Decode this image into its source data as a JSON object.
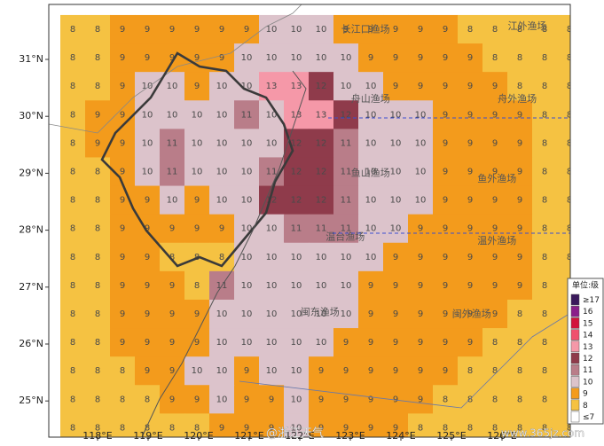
{
  "map": {
    "lat_ticks": [
      {
        "value": 31,
        "label": "31°N"
      },
      {
        "value": 30,
        "label": "30°N"
      },
      {
        "value": 29,
        "label": "29°N"
      },
      {
        "value": 28,
        "label": "28°N"
      },
      {
        "value": 27,
        "label": "27°N"
      },
      {
        "value": 26,
        "label": "26°N"
      },
      {
        "value": 25,
        "label": "25°N"
      }
    ],
    "lon_ticks": [
      {
        "value": 118,
        "label": "118°E"
      },
      {
        "value": 119,
        "label": "119°E"
      },
      {
        "value": 120,
        "label": "120°E"
      },
      {
        "value": 121,
        "label": "121°E"
      },
      {
        "value": 122,
        "label": "122°E"
      },
      {
        "value": 123,
        "label": "123°E"
      },
      {
        "value": 124,
        "label": "124°E"
      },
      {
        "value": 125,
        "label": "125°E"
      },
      {
        "value": 126,
        "label": "126°E"
      }
    ],
    "grid": [
      [
        8,
        8,
        9,
        9,
        9,
        9,
        9,
        9,
        10,
        10,
        10,
        9,
        9,
        9,
        9,
        9,
        8,
        8,
        8,
        8,
        8
      ],
      [
        8,
        8,
        9,
        9,
        9,
        9,
        9,
        10,
        10,
        10,
        10,
        10,
        9,
        9,
        9,
        9,
        9,
        8,
        8,
        8,
        8
      ],
      [
        8,
        8,
        9,
        10,
        10,
        9,
        10,
        10,
        13,
        13,
        12,
        10,
        10,
        9,
        9,
        9,
        9,
        9,
        8,
        8,
        8
      ],
      [
        8,
        9,
        9,
        10,
        10,
        10,
        10,
        11,
        10,
        13,
        13,
        12,
        10,
        10,
        10,
        9,
        9,
        9,
        9,
        8,
        8
      ],
      [
        8,
        9,
        9,
        10,
        11,
        10,
        10,
        10,
        10,
        12,
        12,
        11,
        10,
        10,
        10,
        9,
        9,
        9,
        9,
        8,
        8
      ],
      [
        8,
        8,
        9,
        10,
        11,
        10,
        10,
        10,
        11,
        12,
        12,
        11,
        10,
        10,
        10,
        9,
        9,
        9,
        9,
        8,
        8
      ],
      [
        8,
        8,
        9,
        9,
        10,
        9,
        10,
        10,
        12,
        12,
        12,
        11,
        10,
        10,
        10,
        9,
        9,
        9,
        9,
        8,
        8
      ],
      [
        8,
        8,
        9,
        9,
        9,
        9,
        9,
        10,
        10,
        11,
        11,
        11,
        10,
        10,
        9,
        9,
        9,
        9,
        9,
        8,
        8
      ],
      [
        8,
        8,
        9,
        9,
        8,
        8,
        8,
        10,
        10,
        10,
        10,
        10,
        10,
        9,
        9,
        9,
        9,
        9,
        9,
        8,
        8
      ],
      [
        8,
        8,
        9,
        9,
        9,
        8,
        11,
        10,
        10,
        10,
        10,
        10,
        9,
        9,
        9,
        9,
        9,
        9,
        9,
        8,
        8
      ],
      [
        8,
        8,
        9,
        9,
        9,
        9,
        10,
        10,
        10,
        10,
        10,
        10,
        9,
        9,
        9,
        9,
        9,
        9,
        8,
        8,
        8
      ],
      [
        8,
        8,
        9,
        9,
        9,
        9,
        10,
        10,
        10,
        10,
        10,
        9,
        9,
        9,
        9,
        9,
        9,
        8,
        8,
        8,
        8
      ],
      [
        8,
        8,
        8,
        9,
        9,
        10,
        10,
        9,
        10,
        10,
        9,
        9,
        9,
        9,
        9,
        9,
        8,
        8,
        8,
        8,
        8
      ],
      [
        8,
        8,
        8,
        8,
        9,
        9,
        10,
        9,
        9,
        10,
        9,
        9,
        9,
        9,
        9,
        8,
        8,
        8,
        8,
        8,
        8
      ],
      [
        8,
        8,
        8,
        8,
        8,
        8,
        9,
        9,
        9,
        10,
        9,
        9,
        9,
        9,
        8,
        8,
        8,
        8,
        8,
        8,
        8
      ]
    ],
    "fishing_grounds": [
      {
        "name": "长江口渔场",
        "lon": 123.3,
        "lat": 31.52
      },
      {
        "name": "江外渔场",
        "lon": 126.5,
        "lat": 31.58
      },
      {
        "name": "舟山渔场",
        "lon": 123.4,
        "lat": 30.3
      },
      {
        "name": "舟外渔场",
        "lon": 126.3,
        "lat": 30.3
      },
      {
        "name": "鱼山渔场",
        "lon": 123.4,
        "lat": 29.0
      },
      {
        "name": "鱼外渔场",
        "lon": 125.9,
        "lat": 28.9
      },
      {
        "name": "温台渔场",
        "lon": 122.9,
        "lat": 27.88
      },
      {
        "name": "温外渔场",
        "lon": 125.9,
        "lat": 27.81
      },
      {
        "name": "闽东渔场",
        "lon": 122.4,
        "lat": 26.55
      },
      {
        "name": "闽外渔场",
        "lon": 125.4,
        "lat": 26.52
      }
    ],
    "legend": {
      "title": "单位:级",
      "items": [
        {
          "value": 17,
          "label": "≥17",
          "color": "#3b1a5c"
        },
        {
          "value": 16,
          "label": "16",
          "color": "#8a1f8a"
        },
        {
          "value": 15,
          "label": "15",
          "color": "#d2143c"
        },
        {
          "value": 14,
          "label": "14",
          "color": "#f0506e"
        },
        {
          "value": 13,
          "label": "13",
          "color": "#f598a8"
        },
        {
          "value": 12,
          "label": "12",
          "color": "#8f3b4b"
        },
        {
          "value": 11,
          "label": "11",
          "color": "#b97d89"
        },
        {
          "value": 10,
          "label": "10",
          "color": "#dcc3cb"
        },
        {
          "value": 9,
          "label": "9",
          "color": "#f39b1c"
        },
        {
          "value": 8,
          "label": "8",
          "color": "#f5c242"
        },
        {
          "value": 7,
          "label": "≤7",
          "color": "#ffffff"
        }
      ]
    },
    "watermark": "@浙江天气",
    "site": "www.365jz.com"
  }
}
